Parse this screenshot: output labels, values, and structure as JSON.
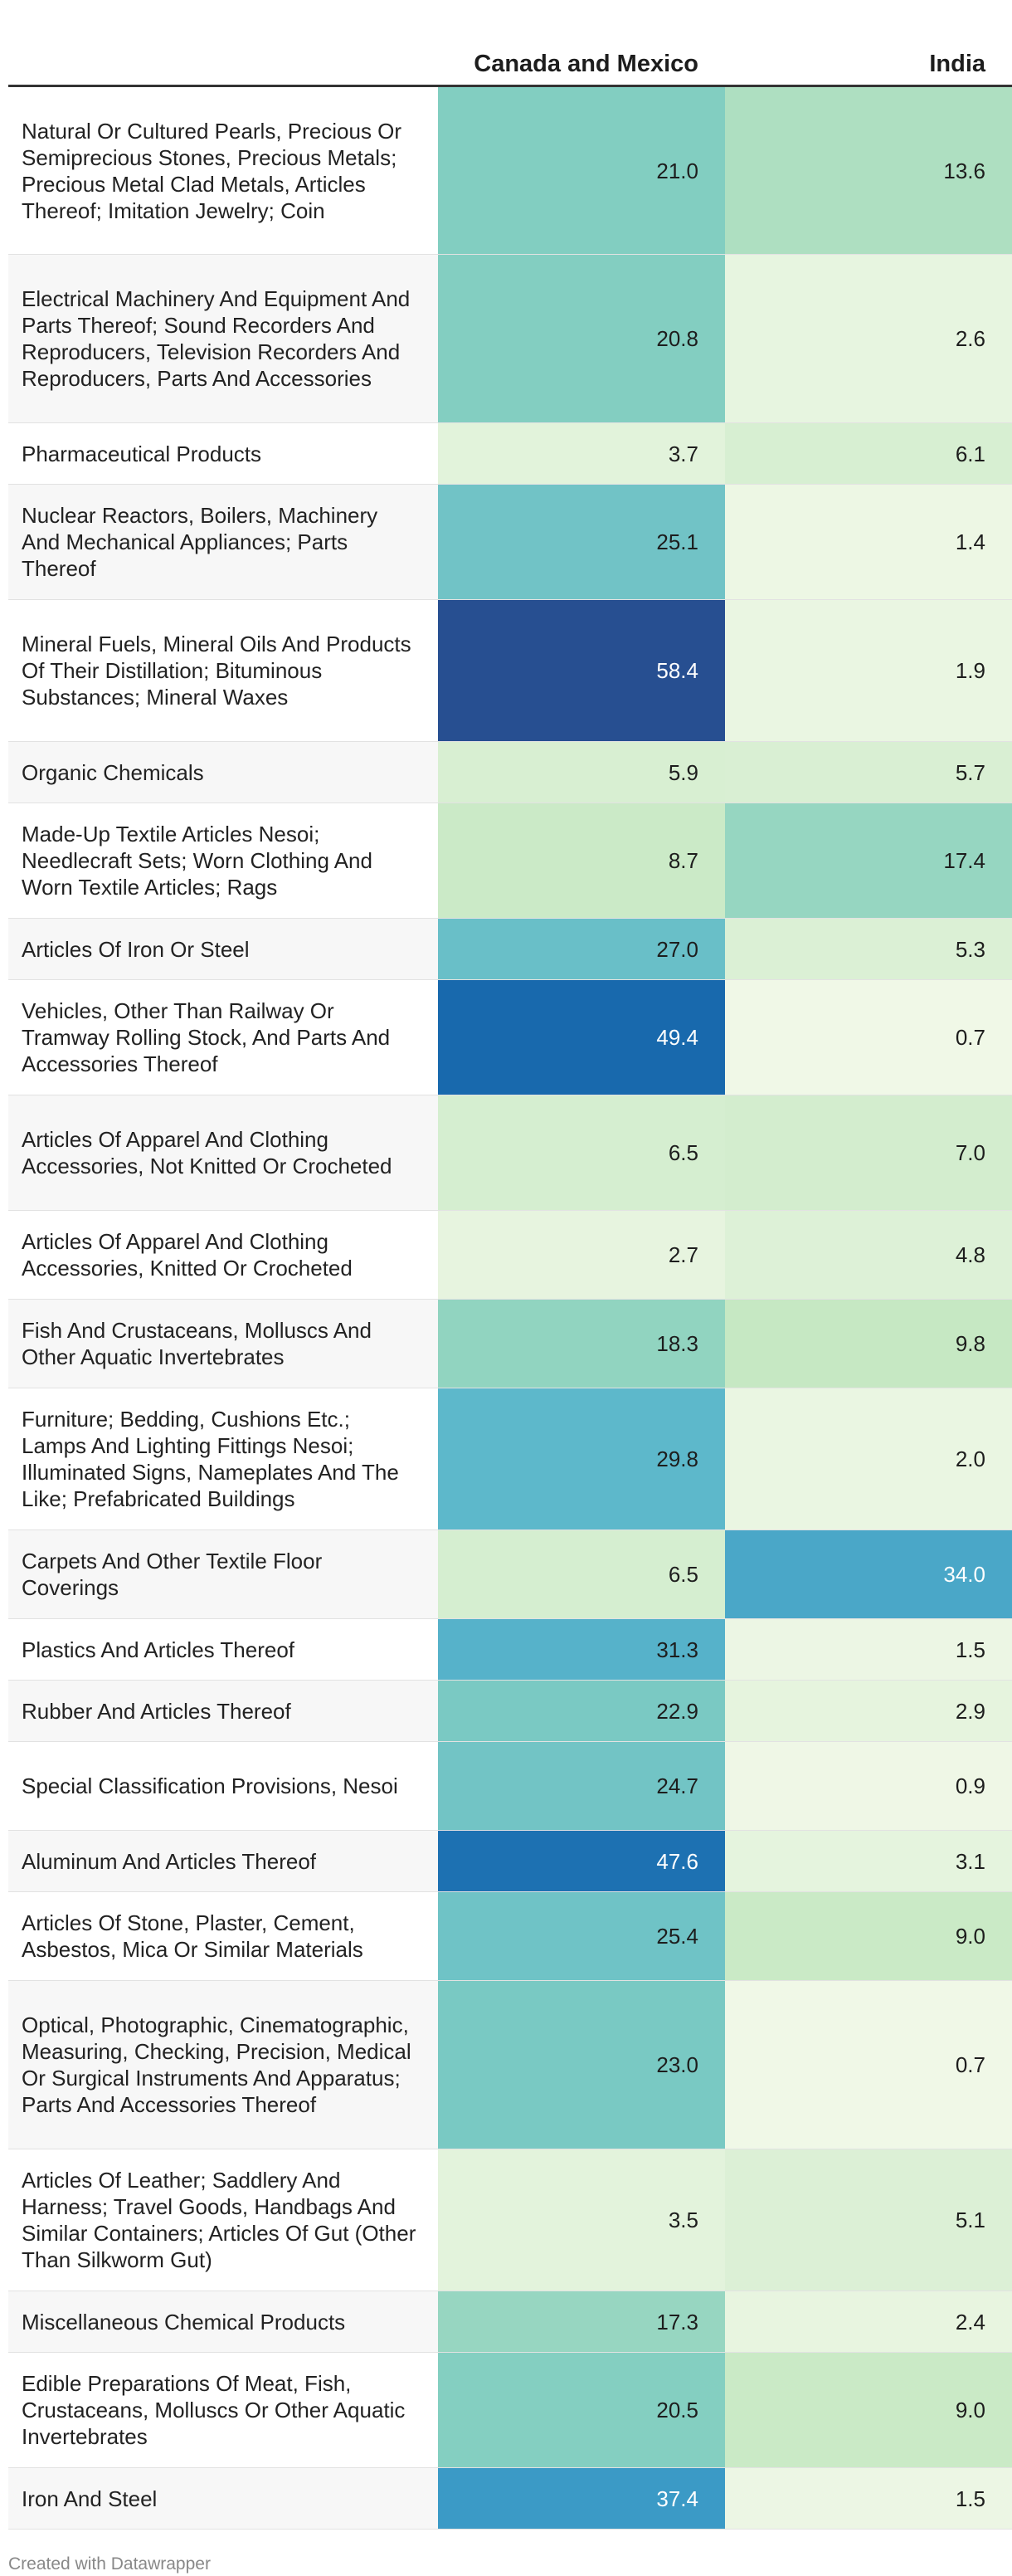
{
  "chart_data": {
    "type": "table",
    "columns": [
      "",
      "Canada and Mexico",
      "India"
    ],
    "rows": [
      {
        "label": "Natural Or Cultured Pearls, Precious Or Semiprecious Stones, Precious Metals; Precious Metal Clad Metals, Articles Thereof; Imitation Jewelry; Coin",
        "values": [
          "21.0",
          "13.6"
        ]
      },
      {
        "label": "Electrical Machinery And Equipment And Parts Thereof; Sound Recorders And Reproducers, Television Recorders And Reproducers, Parts And Accessories",
        "values": [
          "20.8",
          "2.6"
        ]
      },
      {
        "label": "Pharmaceutical Products",
        "values": [
          "3.7",
          "6.1"
        ]
      },
      {
        "label": "Nuclear Reactors, Boilers, Machinery And Mechanical Appliances; Parts Thereof",
        "values": [
          "25.1",
          "1.4"
        ]
      },
      {
        "label": "Mineral Fuels, Mineral Oils And Products Of Their Distillation; Bituminous Substances; Mineral Waxes",
        "values": [
          "58.4",
          "1.9"
        ]
      },
      {
        "label": "Organic Chemicals",
        "values": [
          "5.9",
          "5.7"
        ]
      },
      {
        "label": "Made-Up Textile Articles Nesoi; Needlecraft Sets; Worn Clothing And Worn Textile Articles; Rags",
        "values": [
          "8.7",
          "17.4"
        ]
      },
      {
        "label": "Articles Of Iron Or Steel",
        "values": [
          "27.0",
          "5.3"
        ]
      },
      {
        "label": "Vehicles, Other Than Railway Or Tramway Rolling Stock, And Parts And Accessories Thereof",
        "values": [
          "49.4",
          "0.7"
        ]
      },
      {
        "label": "Articles Of Apparel And Clothing Accessories, Not Knitted Or Crocheted",
        "values": [
          "6.5",
          "7.0"
        ]
      },
      {
        "label": "Articles Of Apparel And Clothing Accessories, Knitted Or Crocheted",
        "values": [
          "2.7",
          "4.8"
        ]
      },
      {
        "label": "Fish And Crustaceans, Molluscs And Other Aquatic Invertebrates",
        "values": [
          "18.3",
          "9.8"
        ]
      },
      {
        "label": "Furniture; Bedding, Cushions Etc.; Lamps And Lighting Fittings Nesoi; Illuminated Signs, Nameplates And The Like; Prefabricated Buildings",
        "values": [
          "29.8",
          "2.0"
        ]
      },
      {
        "label": "Carpets And Other Textile Floor Coverings",
        "values": [
          "6.5",
          "34.0"
        ]
      },
      {
        "label": "Plastics And Articles Thereof",
        "values": [
          "31.3",
          "1.5"
        ]
      },
      {
        "label": "Rubber And Articles Thereof",
        "values": [
          "22.9",
          "2.9"
        ]
      },
      {
        "label": "Special Classification Provisions, Nesoi",
        "values": [
          "24.7",
          "0.9"
        ]
      },
      {
        "label": "Aluminum And Articles Thereof",
        "values": [
          "47.6",
          "3.1"
        ]
      },
      {
        "label": "Articles Of Stone, Plaster, Cement, Asbestos, Mica Or Similar Materials",
        "values": [
          "25.4",
          "9.0"
        ]
      },
      {
        "label": "Optical, Photographic, Cinematographic, Measuring, Checking, Precision, Medical Or Surgical Instruments And Apparatus; Parts And Accessories Thereof",
        "values": [
          "23.0",
          "0.7"
        ]
      },
      {
        "label": "Articles Of Leather; Saddlery And Harness; Travel Goods, Handbags And Similar Containers; Articles Of Gut (Other Than Silkworm Gut)",
        "values": [
          "3.5",
          "5.1"
        ]
      },
      {
        "label": "Miscellaneous Chemical Products",
        "values": [
          "17.3",
          "2.4"
        ]
      },
      {
        "label": "Edible Preparations Of Meat, Fish, Crustaceans, Molluscs Or Other Aquatic Invertebrates",
        "values": [
          "20.5",
          "9.0"
        ]
      },
      {
        "label": "Iron And Steel",
        "values": [
          "37.4",
          "1.5"
        ]
      }
    ],
    "color_scale": {
      "min": 0,
      "max": 60,
      "stops": [
        "#f3f9ea",
        "#c5e8c2",
        "#86d0c0",
        "#5cb7cb",
        "#2f90c4",
        "#1767ac",
        "#2a4a8c"
      ]
    }
  },
  "footer": {
    "credit": "Created with Datawrapper"
  }
}
